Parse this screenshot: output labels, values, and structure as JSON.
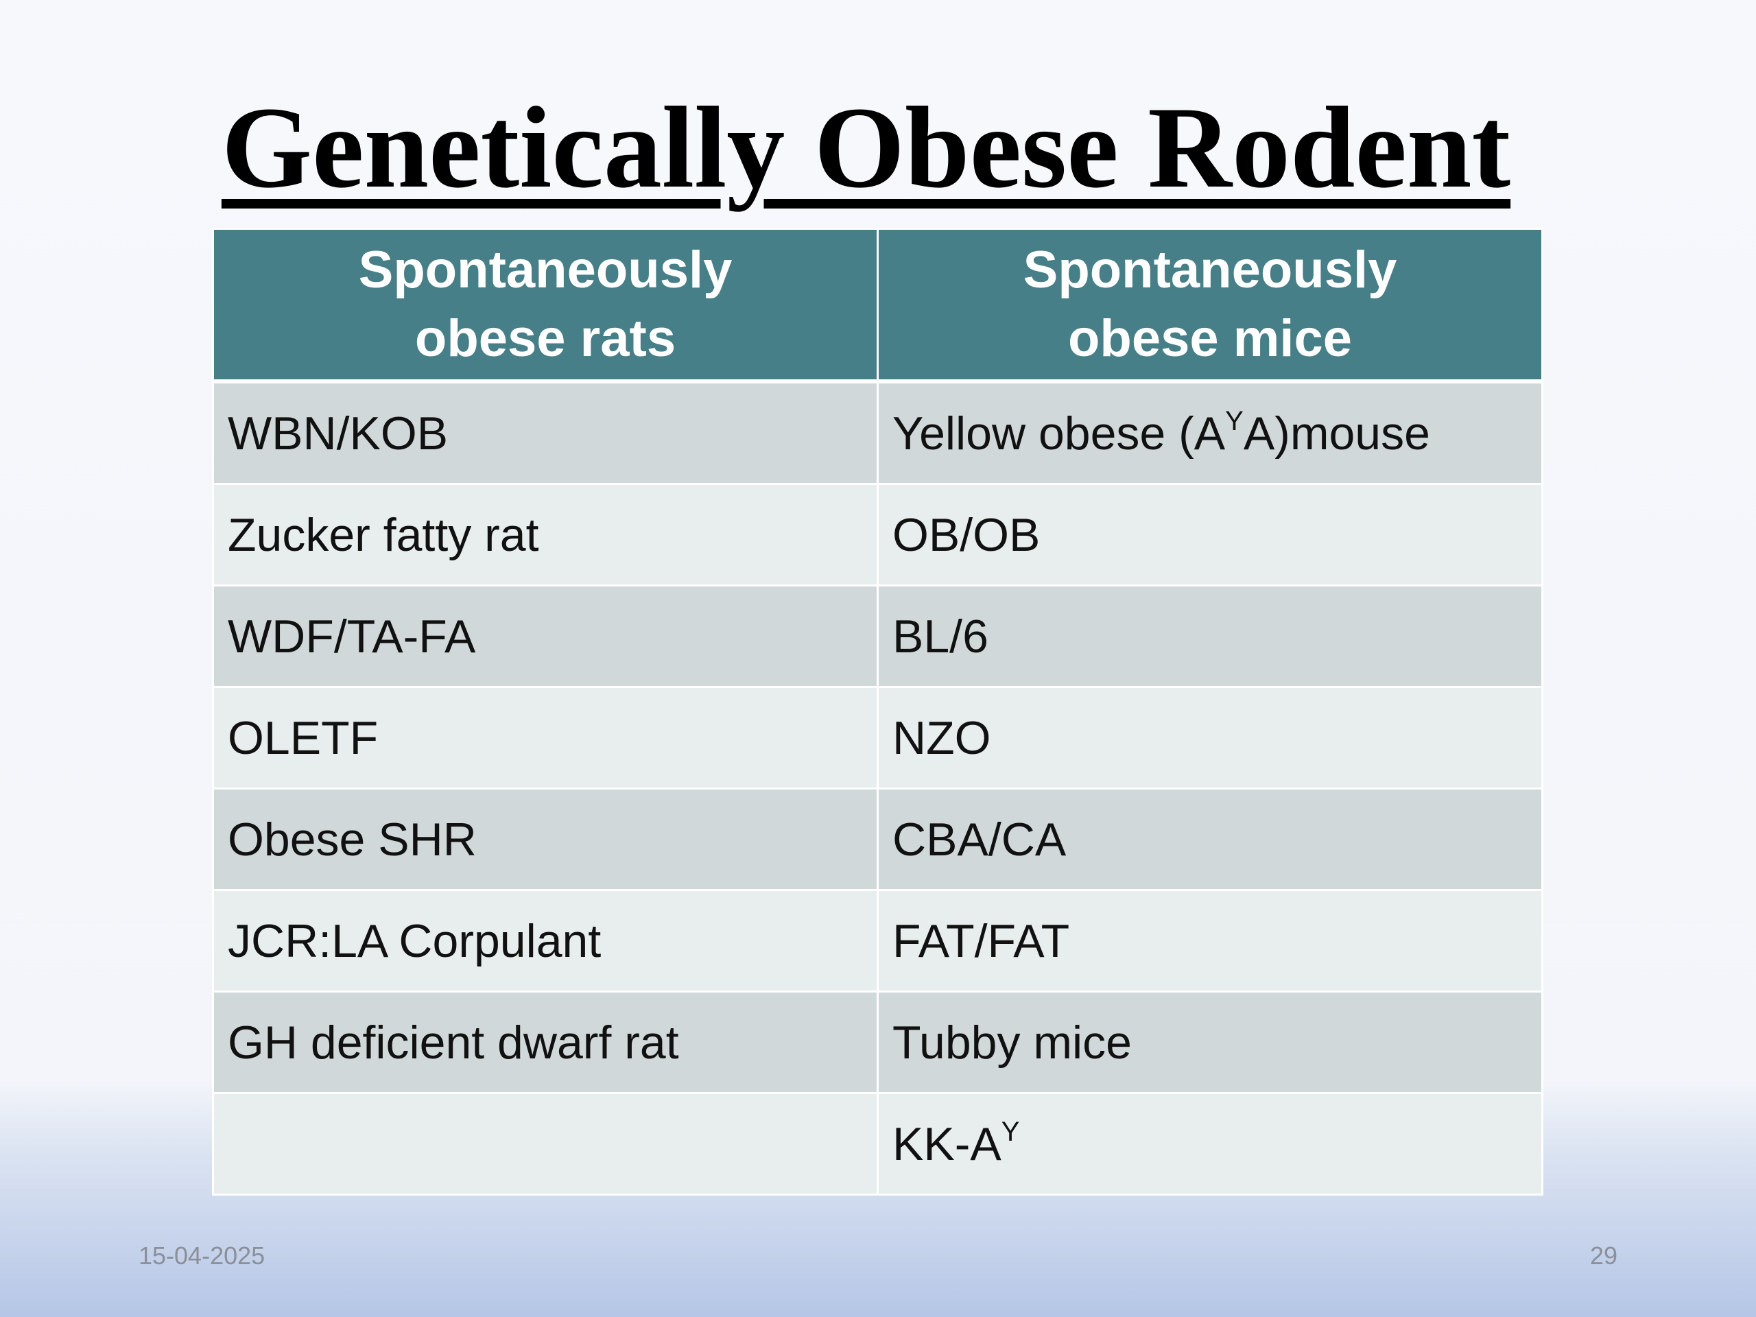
{
  "title": "Genetically Obese Rodent",
  "table": {
    "header": [
      "Spontaneously obese rats",
      "Spontaneously obese mice"
    ],
    "rows": [
      [
        "WBN/KOB",
        [
          {
            "text": "Yellow obese (A"
          },
          {
            "text": "Y",
            "superscript": true
          },
          {
            "text": "A)mouse"
          }
        ]
      ],
      [
        "Zucker fatty rat",
        "OB/OB"
      ],
      [
        "WDF/TA-FA",
        "BL/6"
      ],
      [
        "OLETF",
        "NZO"
      ],
      [
        "Obese SHR",
        "CBA/CA"
      ],
      [
        "JCR:LA Corpulant",
        "FAT/FAT"
      ],
      [
        "GH deficient dwarf rat",
        "Tubby mice"
      ],
      [
        null,
        [
          {
            "text": "KK-A"
          },
          {
            "text": "Y",
            "superscript": true
          }
        ]
      ]
    ]
  },
  "footer": {
    "date": "15-04-2025",
    "page": 29
  }
}
